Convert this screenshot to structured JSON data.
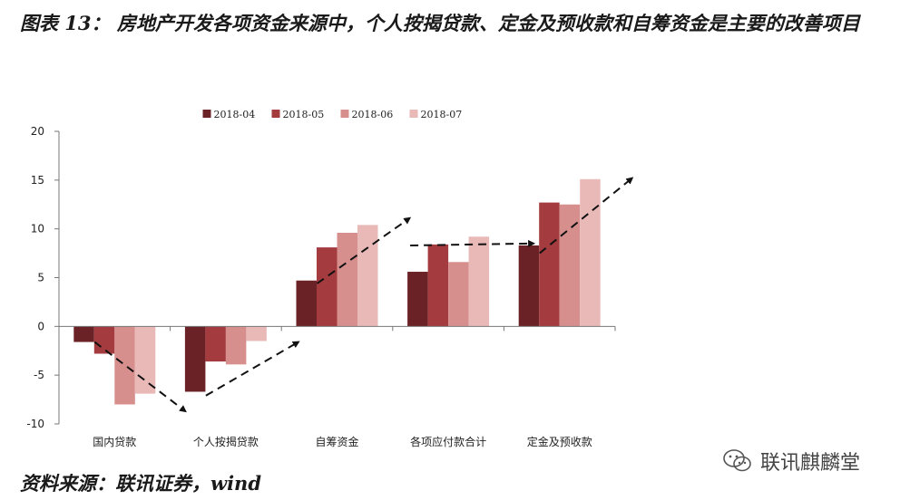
{
  "figure": {
    "title": "图表 13： 房地产开发各项资金来源中，个人按揭贷款、定金及预收款和自筹资金是主要的改善项目",
    "source": "资料来源：联讯证券，wind",
    "watermark": "联讯麒麟堂",
    "watermark_icon": "wechat-icon"
  },
  "chart_data": {
    "type": "bar",
    "title": "",
    "xlabel": "",
    "ylabel": "",
    "categories": [
      "国内贷款",
      "个人按揭贷款",
      "自筹资金",
      "各项应付款合计",
      "定金及预收款"
    ],
    "series": [
      {
        "name": "2018-04",
        "color": "#6b2226",
        "values": [
          -1.6,
          -6.7,
          4.7,
          5.6,
          8.3
        ]
      },
      {
        "name": "2018-05",
        "color": "#a43b3e",
        "values": [
          -2.8,
          -3.6,
          8.1,
          8.4,
          12.7
        ]
      },
      {
        "name": "2018-06",
        "color": "#d78f8e",
        "values": [
          -8.0,
          -3.9,
          9.6,
          6.6,
          12.5
        ]
      },
      {
        "name": "2018-07",
        "color": "#e9b9b8",
        "values": [
          -6.9,
          -1.5,
          10.4,
          9.2,
          15.1
        ]
      }
    ],
    "ylim": [
      -10,
      20
    ],
    "yticks": [
      -10,
      -5,
      0,
      5,
      10,
      15,
      20
    ],
    "grid": false,
    "legend_position": "top-center",
    "annotations": [
      {
        "type": "dashed-arrow",
        "category": "国内贷款",
        "from": [
          -1.6,
          -1.6
        ],
        "to": [
          -8.7,
          -8.7
        ],
        "direction": "down"
      },
      {
        "type": "dashed-arrow",
        "category": "个人按揭贷款",
        "from": [
          -7.1,
          -7.1
        ],
        "to": [
          -1.6,
          -1.6
        ],
        "direction": "up"
      },
      {
        "type": "dashed-arrow",
        "category": "自筹资金",
        "from": [
          4.4,
          4.4
        ],
        "to": [
          11.1,
          11.1
        ],
        "direction": "up"
      },
      {
        "type": "dashed-arrow",
        "category": "各项应付款合计",
        "from": [
          8.3,
          8.3
        ],
        "to": [
          8.5,
          8.5
        ],
        "direction": "flat"
      },
      {
        "type": "dashed-arrow",
        "category": "定金及预收款",
        "from": [
          7.5,
          7.5
        ],
        "to": [
          15.2,
          15.2
        ],
        "direction": "up"
      }
    ]
  }
}
